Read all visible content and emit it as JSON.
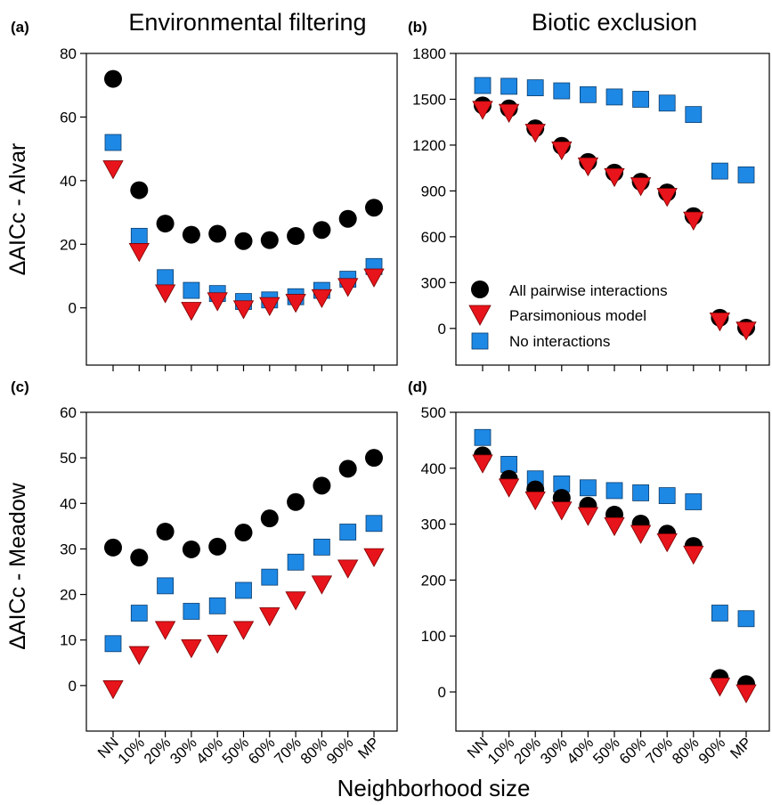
{
  "figure": {
    "column_titles": [
      "Environmental filtering",
      "Biotic exclusion"
    ],
    "row_labels": [
      "ΔAICc - Alvar",
      "ΔAICc - Meadow"
    ],
    "xlabel": "Neighborhood size"
  },
  "legend": {
    "placement": "bottom-left of panel (b)",
    "entries": [
      {
        "label": "All pairwise interactions",
        "marker": "circle",
        "color": "#000000"
      },
      {
        "label": "Parsimonious model",
        "marker": "triangle-down",
        "color": "#e8141b"
      },
      {
        "label": "No interactions",
        "marker": "square",
        "color": "#1e88e5"
      }
    ]
  },
  "colors": {
    "all": "#000000",
    "pars": "#e8141b",
    "noint": "#1e88e5"
  },
  "chart_data": [
    {
      "panel": "(a)",
      "type": "scatter",
      "title": "Environmental filtering",
      "ylabel": "ΔAICc - Alvar",
      "categories": [
        "NN",
        "10%",
        "20%",
        "30%",
        "40%",
        "50%",
        "60%",
        "70%",
        "80%",
        "90%",
        "MP"
      ],
      "ylim": [
        -18,
        80
      ],
      "yticks": [
        0,
        20,
        40,
        60,
        80
      ],
      "grid": false,
      "series": [
        {
          "name": "All pairwise interactions",
          "values": [
            72,
            37,
            26.5,
            23,
            23.3,
            21,
            21.3,
            22.6,
            24.5,
            28,
            31.5
          ]
        },
        {
          "name": "Parsimonious model",
          "values": [
            44,
            18,
            5,
            -0.5,
            2.5,
            0,
            1,
            2,
            3.5,
            7,
            10
          ]
        },
        {
          "name": "No interactions",
          "values": [
            52,
            22.5,
            9.5,
            5.5,
            4.5,
            2,
            2.5,
            3.5,
            5.5,
            9,
            13
          ]
        }
      ]
    },
    {
      "panel": "(b)",
      "type": "scatter",
      "title": "Biotic exclusion",
      "categories": [
        "NN",
        "10%",
        "20%",
        "30%",
        "40%",
        "50%",
        "60%",
        "70%",
        "80%",
        "90%",
        "MP"
      ],
      "ylim": [
        -240,
        1800
      ],
      "yticks": [
        0,
        300,
        600,
        900,
        1200,
        1500,
        1800
      ],
      "grid": false,
      "series": [
        {
          "name": "All pairwise interactions",
          "values": [
            1460,
            1440,
            1310,
            1195,
            1090,
            1020,
            960,
            890,
            735,
            70,
            5
          ]
        },
        {
          "name": "Parsimonious model",
          "values": [
            1440,
            1420,
            1290,
            1175,
            1070,
            1000,
            940,
            870,
            715,
            55,
            -5
          ]
        },
        {
          "name": "No interactions",
          "values": [
            1590,
            1585,
            1575,
            1555,
            1530,
            1515,
            1500,
            1475,
            1400,
            1030,
            1005
          ]
        }
      ]
    },
    {
      "panel": "(c)",
      "type": "scatter",
      "ylabel": "ΔAICc - Meadow",
      "categories": [
        "NN",
        "10%",
        "20%",
        "30%",
        "40%",
        "50%",
        "60%",
        "70%",
        "80%",
        "90%",
        "MP"
      ],
      "ylim": [
        -10,
        60
      ],
      "yticks": [
        0,
        10,
        20,
        30,
        40,
        50,
        60
      ],
      "grid": false,
      "series": [
        {
          "name": "All pairwise interactions",
          "values": [
            30.3,
            28.1,
            33.8,
            29.9,
            30.5,
            33.6,
            36.7,
            40.3,
            43.9,
            47.6,
            50
          ]
        },
        {
          "name": "Parsimonious model",
          "values": [
            -0.5,
            7,
            12.5,
            8.5,
            9.5,
            12.5,
            15.5,
            19,
            22.5,
            26,
            28.5
          ]
        },
        {
          "name": "No interactions",
          "values": [
            9.2,
            15.9,
            21.9,
            16.3,
            17.5,
            20.9,
            23.8,
            27.1,
            30.4,
            33.7,
            35.6
          ]
        }
      ]
    },
    {
      "panel": "(d)",
      "type": "scatter",
      "categories": [
        "NN",
        "10%",
        "20%",
        "30%",
        "40%",
        "50%",
        "60%",
        "70%",
        "80%",
        "90%",
        "MP"
      ],
      "ylim": [
        -70,
        500
      ],
      "yticks": [
        0,
        100,
        200,
        300,
        400,
        500
      ],
      "grid": false,
      "series": [
        {
          "name": "All pairwise interactions",
          "values": [
            423,
            381,
            362,
            347,
            333,
            317,
            301,
            283,
            261,
            25,
            14
          ]
        },
        {
          "name": "Parsimonious model",
          "values": [
            411,
            368,
            345,
            327,
            317,
            299,
            285,
            270,
            248,
            12,
            0
          ]
        },
        {
          "name": "No interactions",
          "values": [
            455,
            407,
            381,
            372,
            365,
            360,
            356,
            351,
            340,
            141,
            131
          ]
        }
      ]
    }
  ]
}
